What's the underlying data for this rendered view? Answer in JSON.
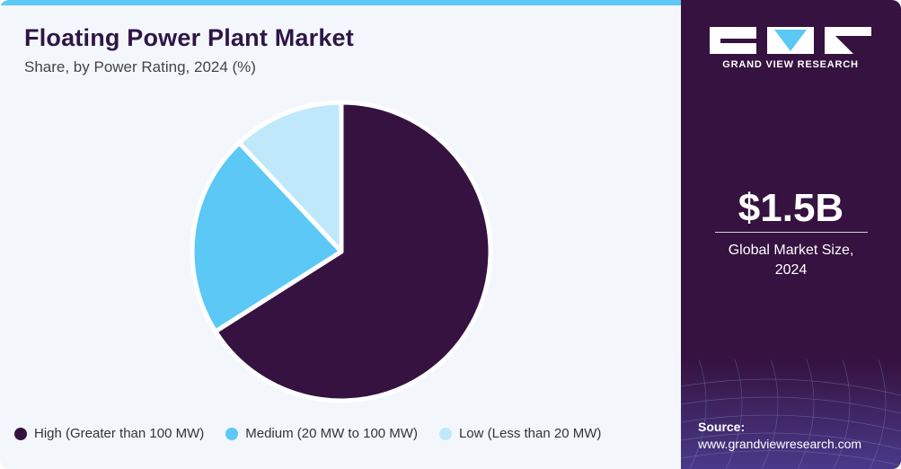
{
  "header": {
    "title": "Floating Power Plant Market",
    "subtitle": "Share, by Power Rating, 2024 (%)"
  },
  "chart_data": {
    "type": "pie",
    "title": "Floating Power Plant Market",
    "subtitle": "Share, by Power Rating, 2024 (%)",
    "categories": [
      "High (Greater than 100 MW)",
      "Medium (20 MW to 100 MW)",
      "Low (Less than 20 MW)"
    ],
    "values": [
      66,
      22,
      12
    ],
    "colors": [
      "#35123f",
      "#5bc8f5",
      "#bfe9fb"
    ],
    "legend_position": "bottom"
  },
  "brand": {
    "name": "GRAND VIEW RESEARCH"
  },
  "highlight": {
    "value": "$1.5B",
    "caption_line1": "Global Market Size,",
    "caption_line2": "2024"
  },
  "source": {
    "label": "Source:",
    "url": "www.grandviewresearch.com"
  },
  "colors": {
    "brand_dark": "#35123f",
    "accent": "#5bc8f5",
    "light_accent": "#bfe9fb",
    "panel_bg": "#f3f7fb"
  }
}
